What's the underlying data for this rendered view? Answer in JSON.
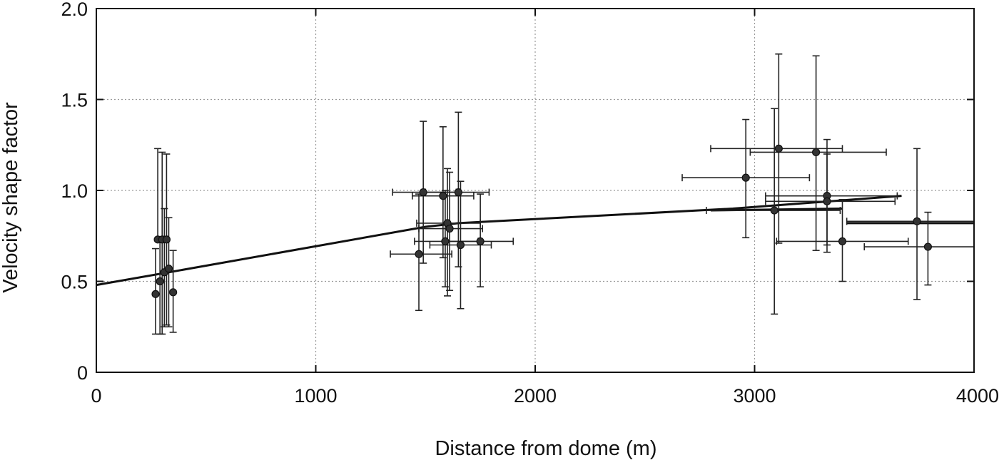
{
  "chart_data": {
    "type": "scatter",
    "xlabel": "Distance from dome (m)",
    "ylabel": "Velocity shape factor",
    "xlim": [
      0,
      4000
    ],
    "ylim": [
      0,
      2.0
    ],
    "x_ticks": [
      "0",
      "1000",
      "2000",
      "3000",
      "4000"
    ],
    "y_ticks": [
      "0",
      "0.5",
      "1.0",
      "1.5",
      "2.0"
    ],
    "grid": true,
    "points": [
      {
        "x": 280,
        "y": 0.73,
        "yerr_low": 0.73,
        "yerr_high": 1.23
      },
      {
        "x": 300,
        "y": 0.73,
        "yerr_low": 0.21,
        "yerr_high": 1.21
      },
      {
        "x": 320,
        "y": 0.73,
        "yerr_low": 0.26,
        "yerr_high": 1.2
      },
      {
        "x": 290,
        "y": 0.5,
        "yerr_low": 0.21,
        "yerr_high": 0.72
      },
      {
        "x": 270,
        "y": 0.43,
        "yerr_low": 0.21,
        "yerr_high": 0.68
      },
      {
        "x": 310,
        "y": 0.55,
        "yerr_low": 0.25,
        "yerr_high": 0.9
      },
      {
        "x": 330,
        "y": 0.57,
        "yerr_low": 0.25,
        "yerr_high": 0.85
      },
      {
        "x": 350,
        "y": 0.44,
        "yerr_low": 0.22,
        "yerr_high": 0.67
      },
      {
        "x": 1490,
        "y": 0.99,
        "yerr_low": 0.6,
        "yerr_high": 1.38,
        "xerr_low": 1350,
        "xerr_high": 1640
      },
      {
        "x": 1470,
        "y": 0.65,
        "yerr_low": 0.34,
        "yerr_high": 0.98,
        "xerr_low": 1340,
        "xerr_high": 1620
      },
      {
        "x": 1580,
        "y": 0.97,
        "yerr_low": 0.63,
        "yerr_high": 1.35,
        "xerr_low": 1440,
        "xerr_high": 1720
      },
      {
        "x": 1600,
        "y": 0.82,
        "yerr_low": 0.42,
        "yerr_high": 1.12,
        "xerr_low": 1460,
        "xerr_high": 1750
      },
      {
        "x": 1610,
        "y": 0.79,
        "yerr_low": 0.45,
        "yerr_high": 1.1,
        "xerr_low": 1470,
        "xerr_high": 1760
      },
      {
        "x": 1650,
        "y": 0.99,
        "yerr_low": 0.58,
        "yerr_high": 1.43,
        "xerr_low": 1500,
        "xerr_high": 1790
      },
      {
        "x": 1590,
        "y": 0.72,
        "yerr_low": 0.47,
        "yerr_high": 1.0,
        "xerr_low": 1450,
        "xerr_high": 1740
      },
      {
        "x": 1660,
        "y": 0.7,
        "yerr_low": 0.35,
        "yerr_high": 1.05,
        "xerr_low": 1520,
        "xerr_high": 1800
      },
      {
        "x": 1750,
        "y": 0.72,
        "yerr_low": 0.47,
        "yerr_high": 0.98,
        "xerr_low": 1600,
        "xerr_high": 1900
      },
      {
        "x": 2960,
        "y": 1.07,
        "yerr_low": 0.74,
        "yerr_high": 1.39,
        "xerr_low": 2670,
        "xerr_high": 3250
      },
      {
        "x": 3110,
        "y": 1.23,
        "yerr_low": 0.71,
        "yerr_high": 1.75,
        "xerr_low": 2800,
        "xerr_high": 3400
      },
      {
        "x": 3280,
        "y": 1.21,
        "yerr_low": 0.67,
        "yerr_high": 1.74,
        "xerr_low": 2980,
        "xerr_high": 3600
      },
      {
        "x": 3090,
        "y": 0.89,
        "yerr_low": 0.32,
        "yerr_high": 1.45,
        "xerr_low": 2780,
        "xerr_high": 3390
      },
      {
        "x": 3330,
        "y": 0.97,
        "yerr_low": 0.66,
        "yerr_high": 1.28,
        "xerr_low": 3050,
        "xerr_high": 3650
      },
      {
        "x": 3330,
        "y": 0.94,
        "yerr_low": 0.7,
        "yerr_high": 1.2,
        "xerr_low": 3050,
        "xerr_high": 3640
      },
      {
        "x": 3400,
        "y": 0.72,
        "yerr_low": 0.5,
        "yerr_high": 0.95,
        "xerr_low": 3100,
        "xerr_high": 3700
      },
      {
        "x": 3740,
        "y": 0.83,
        "yerr_low": 0.4,
        "yerr_high": 1.23,
        "xerr_low": 3420,
        "xerr_high": 4000
      },
      {
        "x": 3790,
        "y": 0.69,
        "yerr_low": 0.48,
        "yerr_high": 0.88,
        "xerr_low": 3500,
        "xerr_high": 4000
      }
    ],
    "fit_line": {
      "x": [
        0,
        330,
        1500,
        1650,
        2900,
        3670
      ],
      "y": [
        0.48,
        0.55,
        0.8,
        0.82,
        0.9,
        0.97
      ]
    },
    "fit_line_2": {
      "x": [
        2800,
        3400
      ],
      "y": [
        0.89,
        0.9
      ]
    },
    "fit_line_3": {
      "x": [
        3420,
        4000
      ],
      "y": [
        0.82,
        0.82
      ]
    }
  }
}
